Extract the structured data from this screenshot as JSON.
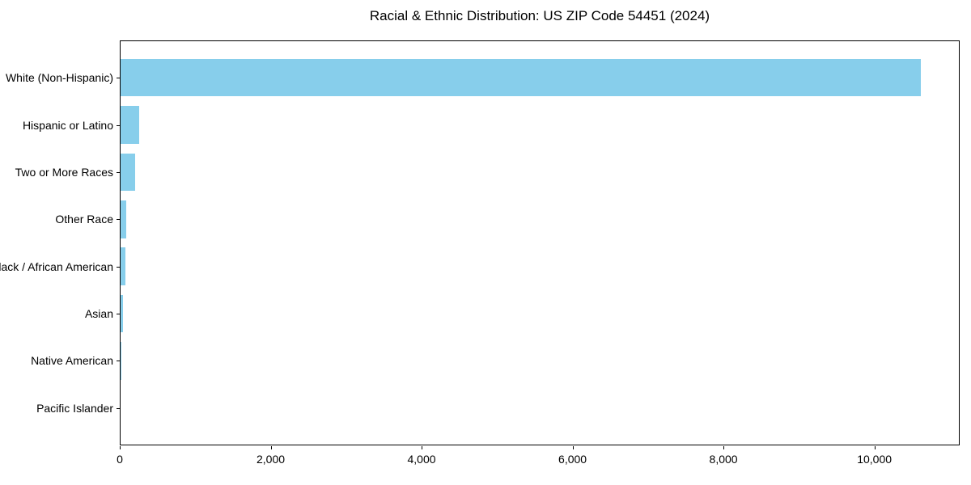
{
  "figure": {
    "background": "#ffffff",
    "title": "Racial & Ethnic Distribution: US ZIP Code 54451 (2024)"
  },
  "chart_data": {
    "type": "bar",
    "orientation": "horizontal",
    "title": "Racial & Ethnic Distribution: US ZIP Code 54451 (2024)",
    "categories": [
      "White (Non-Hispanic)",
      "Hispanic or Latino",
      "Two or More Races",
      "Other Race",
      "Black / African American",
      "Asian",
      "Native American",
      "Pacific Islander"
    ],
    "values": [
      10600,
      250,
      190,
      75,
      65,
      30,
      15,
      0
    ],
    "bar_color": "#87CEEB",
    "axis_color": "#000000",
    "text_color": "#000000",
    "xlabel": "",
    "ylabel": "",
    "xlim": [
      0,
      11130
    ],
    "x_ticks": [
      0,
      2000,
      4000,
      6000,
      8000,
      10000
    ],
    "x_tick_labels": [
      "0",
      "2,000",
      "4,000",
      "6,000",
      "8,000",
      "10,000"
    ],
    "grid": false,
    "legend": null,
    "bar_height_fraction": 0.8
  }
}
